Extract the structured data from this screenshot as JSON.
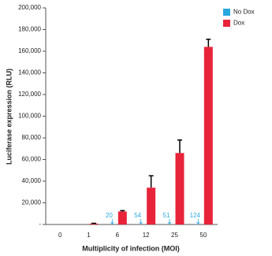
{
  "chart_data": {
    "type": "bar",
    "x_label": "Multiplicity of infection (MOI)",
    "y_label": "Luciferase expression (RLU)",
    "categories": [
      "0",
      "1",
      "6",
      "12",
      "25",
      "50"
    ],
    "series": [
      {
        "name": "No Dox",
        "color": "#29a8e0",
        "values": [
          0,
          0,
          20,
          54,
          51,
          124
        ]
      },
      {
        "name": "Dox",
        "color": "#e8243a",
        "values": [
          0,
          800,
          12000,
          34000,
          66000,
          164000
        ],
        "errors": [
          0,
          300,
          800,
          11000,
          12000,
          7000
        ]
      }
    ],
    "ylim": [
      0,
      200000
    ],
    "yticks": [
      {
        "value": 0,
        "label": "-"
      },
      {
        "value": 20000,
        "label": "20,000"
      },
      {
        "value": 40000,
        "label": "40,000"
      },
      {
        "value": 60000,
        "label": "60,000"
      },
      {
        "value": 80000,
        "label": "80,000"
      },
      {
        "value": 100000,
        "label": "100,000"
      },
      {
        "value": 120000,
        "label": "120,000"
      },
      {
        "value": 140000,
        "label": "140,000"
      },
      {
        "value": 160000,
        "label": "160,000"
      },
      {
        "value": 180000,
        "label": "180,000"
      },
      {
        "value": 200000,
        "label": "200,000"
      }
    ],
    "legend": "top-right"
  }
}
